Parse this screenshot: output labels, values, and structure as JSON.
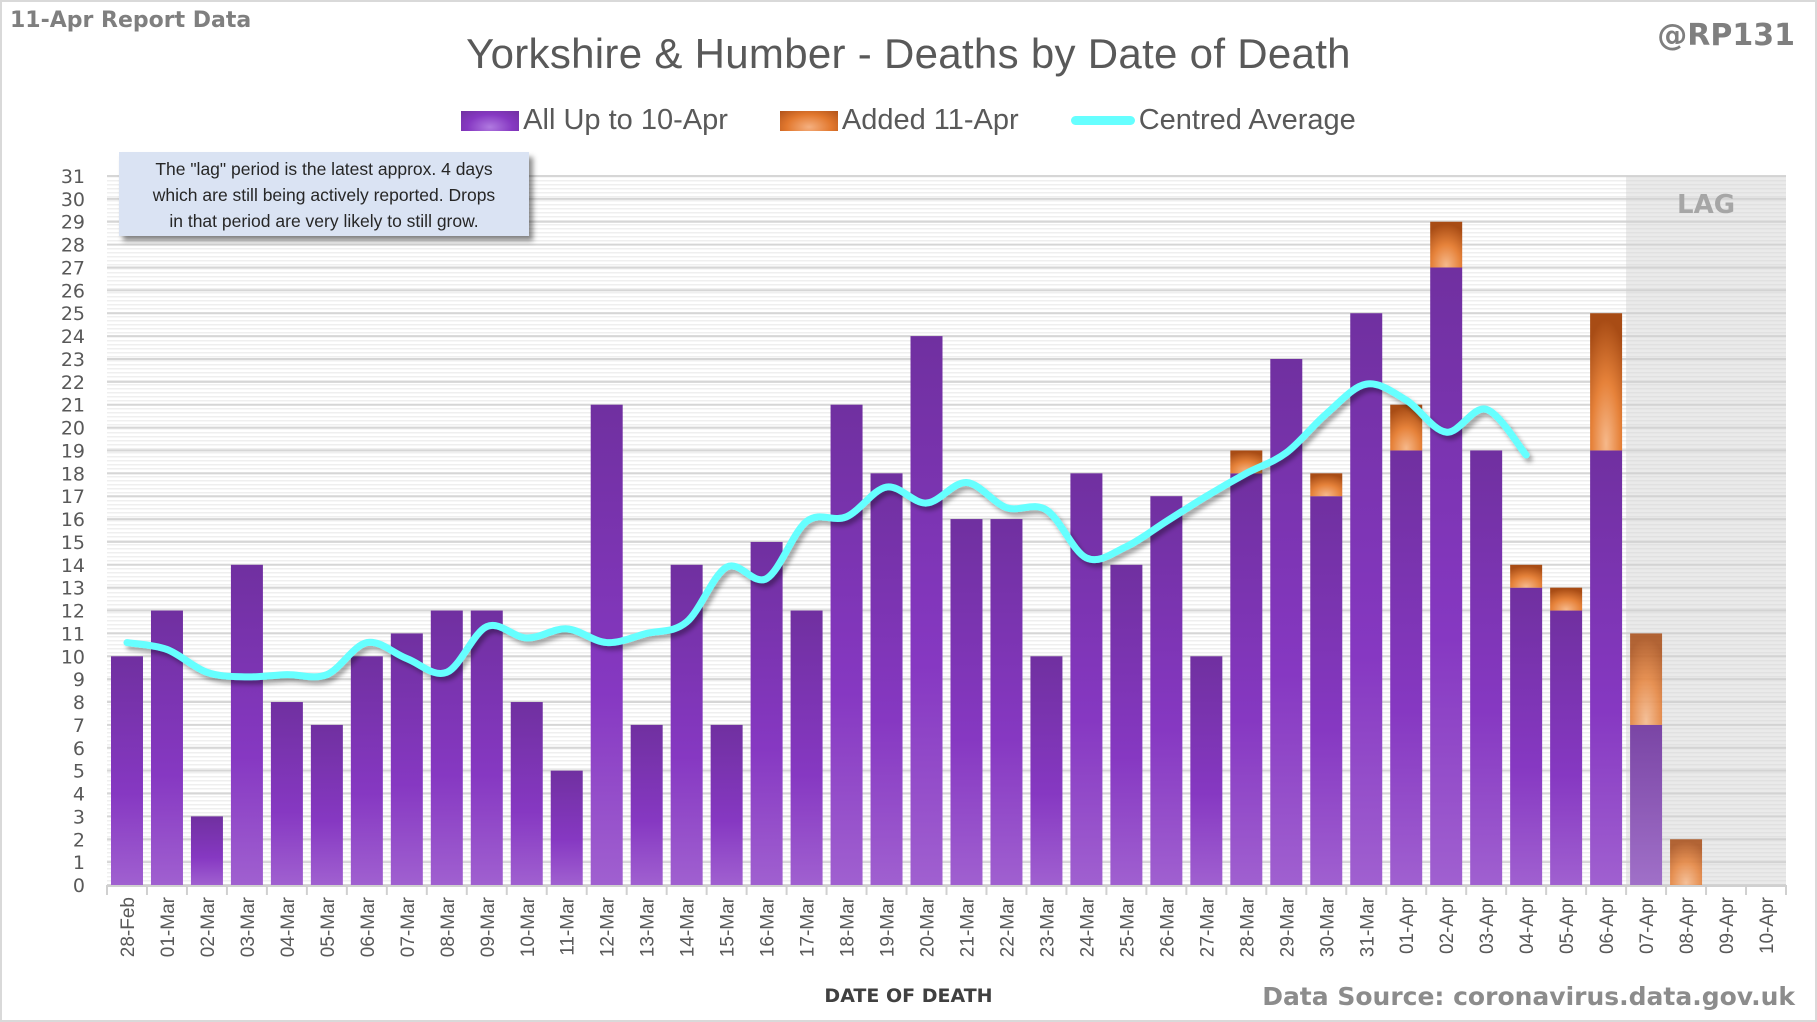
{
  "header": {
    "report_label": "11-Apr Report Data",
    "handle": "@RP131",
    "title": "Yorkshire & Humber - Deaths by Date of Death"
  },
  "legend": {
    "items": [
      {
        "label": "All Up to 10-Apr",
        "type": "bar",
        "color": "#7030a0"
      },
      {
        "label": "Added 11-Apr",
        "type": "bar",
        "color": "#e2782e"
      },
      {
        "label": "Centred Average",
        "type": "line",
        "color": "#66ffff"
      }
    ]
  },
  "note": {
    "lines": [
      "The \"lag\" period is the latest approx. 4 days",
      "which are still being actively reported.  Drops",
      "in that period are very likely to still grow."
    ]
  },
  "footer": {
    "xlabel": "DATE OF DEATH",
    "source": "Data Source: coronavirus.data.gov.uk"
  },
  "chart_data": {
    "type": "bar",
    "stacked": true,
    "title": "Yorkshire & Humber - Deaths by Date of Death",
    "xlabel": "DATE OF DEATH",
    "ylabel": "",
    "ylim": [
      0,
      31
    ],
    "yticks": [
      0,
      1,
      2,
      3,
      4,
      5,
      6,
      7,
      8,
      9,
      10,
      11,
      12,
      13,
      14,
      15,
      16,
      17,
      18,
      19,
      20,
      21,
      22,
      23,
      24,
      25,
      26,
      27,
      28,
      29,
      30,
      31
    ],
    "grid": true,
    "legend_position": "top",
    "lag_label": "LAG",
    "lag_days": 4,
    "categories": [
      "28-Feb",
      "01-Mar",
      "02-Mar",
      "03-Mar",
      "04-Mar",
      "05-Mar",
      "06-Mar",
      "07-Mar",
      "08-Mar",
      "09-Mar",
      "10-Mar",
      "11-Mar",
      "12-Mar",
      "13-Mar",
      "14-Mar",
      "15-Mar",
      "16-Mar",
      "17-Mar",
      "18-Mar",
      "19-Mar",
      "20-Mar",
      "21-Mar",
      "22-Mar",
      "23-Mar",
      "24-Mar",
      "25-Mar",
      "26-Mar",
      "27-Mar",
      "28-Mar",
      "29-Mar",
      "30-Mar",
      "31-Mar",
      "01-Apr",
      "02-Apr",
      "03-Apr",
      "04-Apr",
      "05-Apr",
      "06-Apr",
      "07-Apr",
      "08-Apr",
      "09-Apr",
      "10-Apr"
    ],
    "series": [
      {
        "name": "All Up to 10-Apr",
        "kind": "bar",
        "color": "#7030a0",
        "values": [
          10,
          12,
          3,
          14,
          8,
          7,
          10,
          11,
          12,
          12,
          8,
          5,
          21,
          7,
          14,
          7,
          15,
          12,
          21,
          18,
          24,
          16,
          16,
          10,
          18,
          14,
          17,
          10,
          18,
          23,
          17,
          25,
          19,
          27,
          19,
          13,
          12,
          19,
          7,
          0,
          0,
          0
        ]
      },
      {
        "name": "Added 11-Apr",
        "kind": "bar",
        "color": "#e2782e",
        "values": [
          0,
          0,
          0,
          0,
          0,
          0,
          0,
          0,
          0,
          0,
          0,
          0,
          0,
          0,
          0,
          0,
          0,
          0,
          0,
          0,
          0,
          0,
          0,
          0,
          0,
          0,
          0,
          0,
          1,
          0,
          1,
          0,
          2,
          2,
          0,
          1,
          1,
          6,
          4,
          2,
          0,
          0
        ]
      },
      {
        "name": "Centred Average",
        "kind": "line",
        "color": "#66ffff",
        "values": [
          10.6,
          10.3,
          9.3,
          9.1,
          9.2,
          9.2,
          10.6,
          9.9,
          9.3,
          11.3,
          10.8,
          11.2,
          10.6,
          11.0,
          11.5,
          13.9,
          13.4,
          15.9,
          16.1,
          17.4,
          16.7,
          17.6,
          16.5,
          16.4,
          14.3,
          14.8,
          15.9,
          17.0,
          18.0,
          18.9,
          20.6,
          21.9,
          21.2,
          19.8,
          20.8,
          18.8,
          null,
          null,
          null,
          null,
          null,
          null
        ]
      }
    ]
  }
}
